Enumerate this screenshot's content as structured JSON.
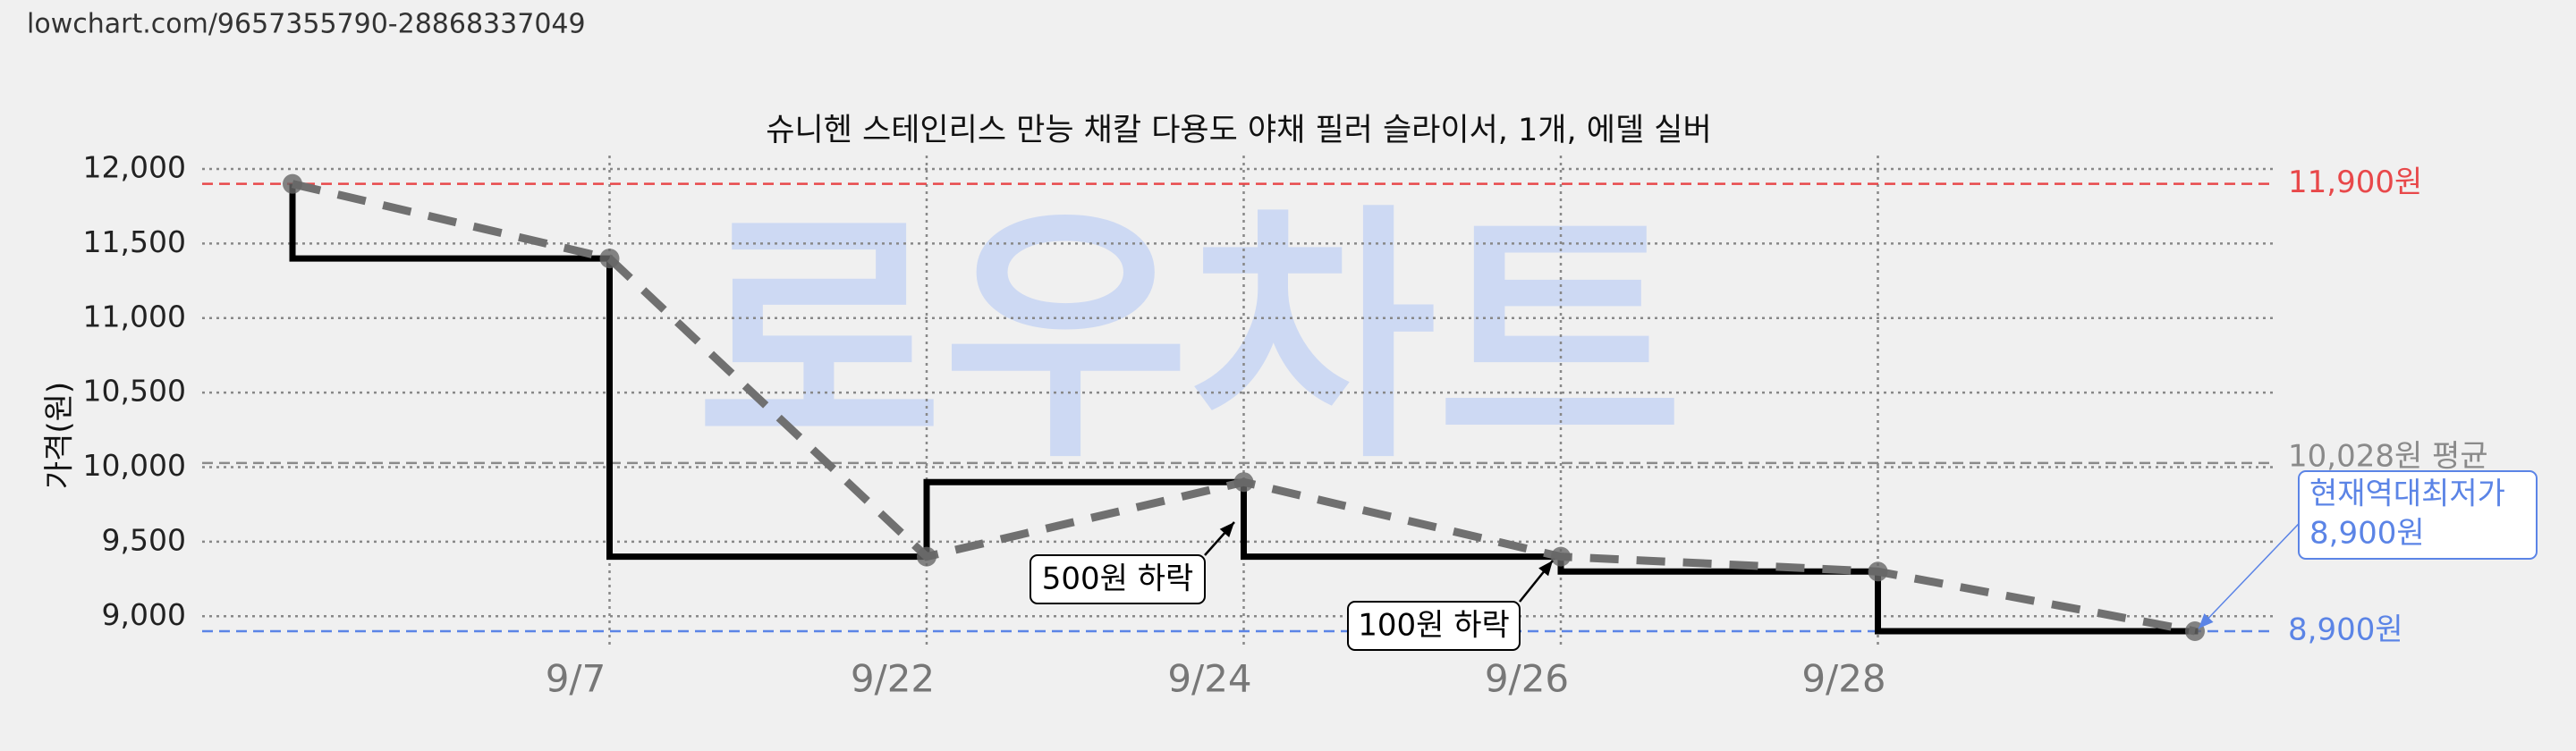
{
  "url": "lowchart.com/9657355790-28868337049",
  "chart_data": {
    "type": "step-price",
    "title": "슈니헨 스테인리스 만능 채칼 다용도 야채 필러 슬라이서, 1개, 에델 실버",
    "watermark": "로우차트",
    "y_label": "가격(원)",
    "categories": [
      null,
      "9/7",
      "9/22",
      "9/24",
      "9/26",
      "9/28",
      null
    ],
    "series": [
      {
        "color": "#000000",
        "dash_color": "#707070",
        "values": [
          11900,
          11400,
          9400,
          9900,
          9400,
          9300,
          8900
        ]
      }
    ],
    "ylim": [
      8780,
      12090
    ],
    "yticks": [
      {
        "value": 9000,
        "label": "9,000"
      },
      {
        "value": 9500,
        "label": "9,500"
      },
      {
        "value": 10000,
        "label": "10,000"
      },
      {
        "value": 10500,
        "label": "10,500"
      },
      {
        "value": 11000,
        "label": "11,000"
      },
      {
        "value": 11500,
        "label": "11,500"
      },
      {
        "value": 12000,
        "label": "12,000"
      }
    ],
    "grid": true,
    "reference_lines": [
      {
        "value": 11900,
        "label": "11,900원",
        "color": "#e8484a"
      },
      {
        "value": 10028,
        "label": "10,028원 평균",
        "color": "#8a8a8a"
      },
      {
        "value": 8900,
        "label": "8,900원",
        "color": "#5b84e6"
      }
    ],
    "annotations": [
      {
        "text": "500원 하락"
      },
      {
        "text": "100원 하락"
      },
      {
        "text": [
          "현재역대최저가",
          "8,900원"
        ],
        "color": "#5b84e6"
      }
    ]
  }
}
